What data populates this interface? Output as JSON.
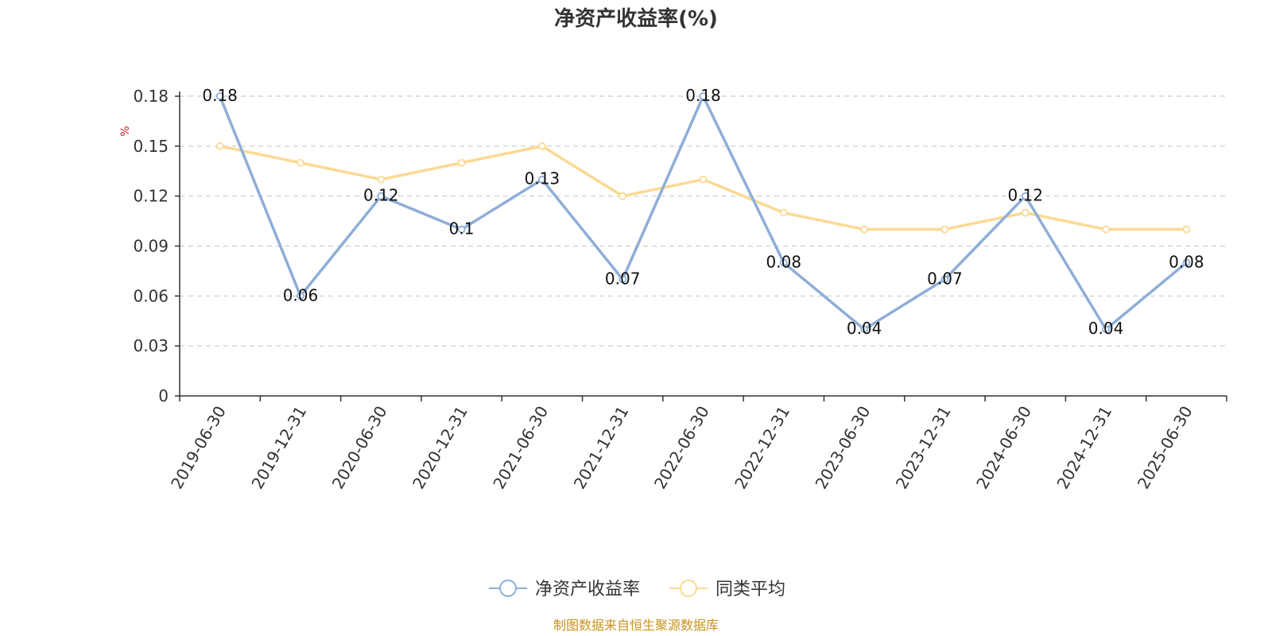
{
  "chart_data": {
    "type": "line",
    "title": "净资产收益率(%)",
    "ylabel": "%",
    "ylim": [
      0,
      0.18
    ],
    "yticks": [
      0,
      0.03,
      0.06,
      0.09,
      0.12,
      0.15,
      0.18
    ],
    "ytick_labels": [
      "0",
      "0.03",
      "0.06",
      "0.09",
      "0.12",
      "0.15",
      "0.18"
    ],
    "grid": true,
    "legend_position": "bottom-center",
    "categories": [
      "2019-06-30",
      "2019-12-31",
      "2020-06-30",
      "2020-12-31",
      "2021-06-30",
      "2021-12-31",
      "2022-06-30",
      "2022-12-31",
      "2023-06-30",
      "2023-12-31",
      "2024-06-30",
      "2024-12-31",
      "2025-06-30"
    ],
    "series": [
      {
        "name": "净资产收益率",
        "color": "#8eaed8",
        "values": [
          0.18,
          0.06,
          0.12,
          0.1,
          0.13,
          0.07,
          0.18,
          0.08,
          0.04,
          0.07,
          0.12,
          0.04,
          0.08
        ],
        "labels": [
          "0.18",
          "0.06",
          "0.12",
          "0.1",
          "0.13",
          "0.07",
          "0.18",
          "0.08",
          "0.04",
          "0.07",
          "0.12",
          "0.04",
          "0.08"
        ]
      },
      {
        "name": "同类平均",
        "color": "#fcd993",
        "values": [
          0.15,
          0.14,
          0.13,
          0.14,
          0.15,
          0.12,
          0.13,
          0.11,
          0.1,
          0.1,
          0.11,
          0.1,
          0.1
        ]
      }
    ]
  },
  "source_text": "制图数据来自恒生聚源数据库"
}
